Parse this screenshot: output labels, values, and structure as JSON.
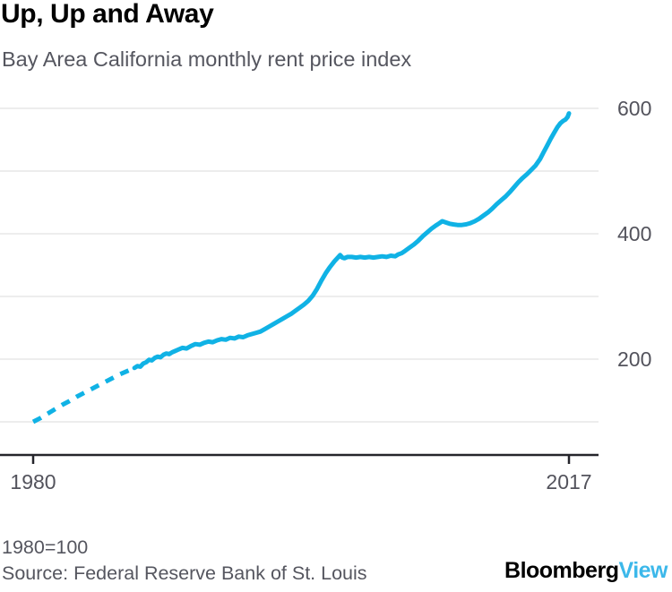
{
  "header": {
    "title": "Up, Up and Away",
    "subtitle": "Bay Area California monthly rent price index"
  },
  "colors": {
    "line": "#10b2e5",
    "grid": "#ededed",
    "axis": "#25252b",
    "muted_text": "#55565f",
    "logo_accent": "#3cb8ea"
  },
  "chart_data": {
    "type": "line",
    "title": "Up, Up and Away",
    "subtitle": "Bay Area California monthly rent price index",
    "grid": "horizontal",
    "legend": "none",
    "x_range": [
      1977.7,
      2019.0
    ],
    "y_range": [
      50,
      630
    ],
    "x_label_ticks": [
      {
        "year": 1980,
        "label": "1980"
      },
      {
        "year": 2017,
        "label": "2017"
      }
    ],
    "y_label_ticks": [
      {
        "value": 600,
        "label": "600"
      },
      {
        "value": 400,
        "label": "400"
      },
      {
        "value": 200,
        "label": "200"
      }
    ],
    "gridline_values": [
      600,
      500,
      400,
      300,
      200,
      100
    ],
    "series": [
      {
        "name": "Bay Area CA monthly rent price index (1980=100)",
        "color": "#10b2e5",
        "style_note": "pre-1987 portion rendered as short dashes (sparse data)",
        "dashed_points": [
          [
            1980.0,
            100
          ],
          [
            1980.5,
            106
          ],
          [
            1981.0,
            113
          ],
          [
            1981.5,
            120
          ],
          [
            1982.0,
            127
          ],
          [
            1982.5,
            133
          ],
          [
            1983.0,
            140
          ],
          [
            1983.5,
            146
          ],
          [
            1984.0,
            152
          ],
          [
            1984.5,
            158
          ],
          [
            1985.0,
            164
          ],
          [
            1985.5,
            170
          ],
          [
            1986.0,
            176
          ],
          [
            1986.5,
            181
          ],
          [
            1987.0,
            186
          ]
        ],
        "points": [
          [
            1987.0,
            186
          ],
          [
            1987.2,
            189
          ],
          [
            1987.4,
            188
          ],
          [
            1987.6,
            193
          ],
          [
            1987.8,
            195
          ],
          [
            1988.0,
            199
          ],
          [
            1988.2,
            198
          ],
          [
            1988.4,
            202
          ],
          [
            1988.6,
            204
          ],
          [
            1988.8,
            203
          ],
          [
            1989.0,
            207
          ],
          [
            1989.2,
            209
          ],
          [
            1989.4,
            208
          ],
          [
            1989.6,
            211
          ],
          [
            1989.8,
            213
          ],
          [
            1990.0,
            215
          ],
          [
            1990.3,
            218
          ],
          [
            1990.6,
            217
          ],
          [
            1990.9,
            221
          ],
          [
            1991.2,
            224
          ],
          [
            1991.5,
            223
          ],
          [
            1991.8,
            226
          ],
          [
            1992.1,
            228
          ],
          [
            1992.4,
            227
          ],
          [
            1992.7,
            230
          ],
          [
            1993.0,
            232
          ],
          [
            1993.3,
            231
          ],
          [
            1993.6,
            234
          ],
          [
            1993.9,
            233
          ],
          [
            1994.2,
            236
          ],
          [
            1994.5,
            235
          ],
          [
            1994.8,
            238
          ],
          [
            1995.1,
            240
          ],
          [
            1995.4,
            242
          ],
          [
            1995.7,
            244
          ],
          [
            1996.0,
            248
          ],
          [
            1996.3,
            252
          ],
          [
            1996.6,
            256
          ],
          [
            1996.9,
            260
          ],
          [
            1997.2,
            264
          ],
          [
            1997.5,
            268
          ],
          [
            1997.8,
            272
          ],
          [
            1998.1,
            277
          ],
          [
            1998.4,
            282
          ],
          [
            1998.7,
            287
          ],
          [
            1999.0,
            293
          ],
          [
            1999.3,
            301
          ],
          [
            1999.6,
            312
          ],
          [
            1999.9,
            325
          ],
          [
            2000.2,
            337
          ],
          [
            2000.5,
            347
          ],
          [
            2000.8,
            356
          ],
          [
            2001.0,
            361
          ],
          [
            2001.2,
            366
          ],
          [
            2001.35,
            362
          ],
          [
            2001.5,
            361
          ],
          [
            2001.7,
            363
          ],
          [
            2002.0,
            363
          ],
          [
            2002.3,
            362
          ],
          [
            2002.6,
            363
          ],
          [
            2002.9,
            362
          ],
          [
            2003.2,
            363
          ],
          [
            2003.5,
            362
          ],
          [
            2003.8,
            363
          ],
          [
            2004.1,
            364
          ],
          [
            2004.4,
            363
          ],
          [
            2004.7,
            365
          ],
          [
            2005.0,
            364
          ],
          [
            2005.2,
            367
          ],
          [
            2005.45,
            369
          ],
          [
            2005.7,
            373
          ],
          [
            2006.0,
            378
          ],
          [
            2006.3,
            383
          ],
          [
            2006.6,
            389
          ],
          [
            2006.9,
            396
          ],
          [
            2007.2,
            402
          ],
          [
            2007.5,
            408
          ],
          [
            2007.8,
            413
          ],
          [
            2008.0,
            416
          ],
          [
            2008.25,
            420
          ],
          [
            2008.5,
            418
          ],
          [
            2008.75,
            416
          ],
          [
            2009.0,
            415
          ],
          [
            2009.3,
            414
          ],
          [
            2009.6,
            414
          ],
          [
            2009.9,
            415
          ],
          [
            2010.2,
            417
          ],
          [
            2010.5,
            420
          ],
          [
            2010.8,
            424
          ],
          [
            2011.1,
            429
          ],
          [
            2011.4,
            434
          ],
          [
            2011.7,
            440
          ],
          [
            2012.0,
            447
          ],
          [
            2012.3,
            453
          ],
          [
            2012.6,
            459
          ],
          [
            2012.9,
            466
          ],
          [
            2013.2,
            474
          ],
          [
            2013.5,
            482
          ],
          [
            2013.8,
            489
          ],
          [
            2014.1,
            495
          ],
          [
            2014.4,
            502
          ],
          [
            2014.7,
            509
          ],
          [
            2015.0,
            519
          ],
          [
            2015.25,
            530
          ],
          [
            2015.5,
            541
          ],
          [
            2015.75,
            552
          ],
          [
            2016.0,
            562
          ],
          [
            2016.2,
            570
          ],
          [
            2016.4,
            576
          ],
          [
            2016.6,
            580
          ],
          [
            2016.75,
            582
          ],
          [
            2016.9,
            586
          ],
          [
            2017.0,
            592
          ]
        ]
      }
    ]
  },
  "footer": {
    "note": "1980=100",
    "source": "Source: Federal Reserve Bank of St. Louis",
    "logo": {
      "primary": "Bloomberg",
      "accent": "View"
    }
  }
}
